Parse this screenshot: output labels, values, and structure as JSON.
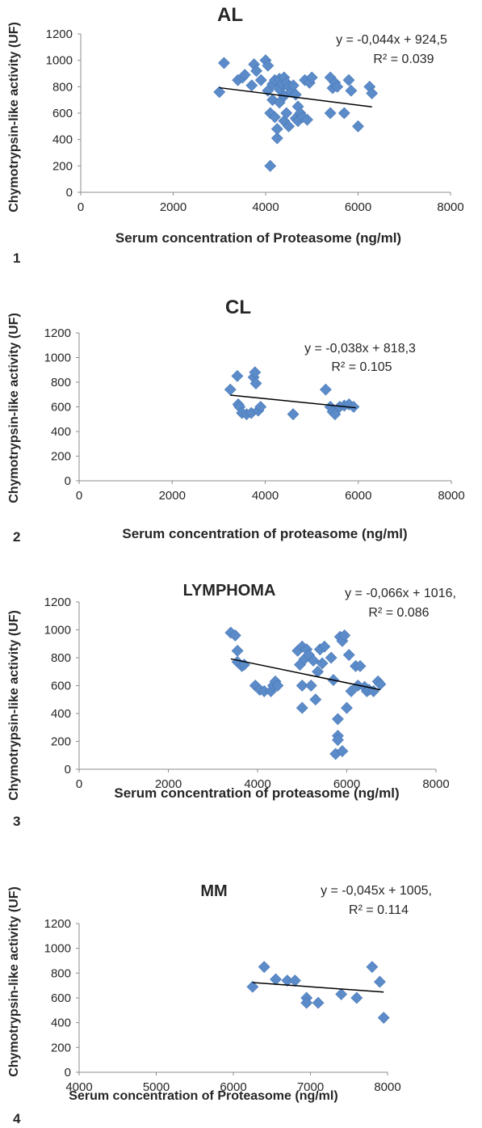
{
  "colors": {
    "marker": "#5b8bc9",
    "trendline": "#000000",
    "axis": "#8c8c8c",
    "text": "#262626"
  },
  "chart_data": [
    {
      "type": "scatter",
      "panel_number": "1",
      "title": "AL",
      "xlabel": "Serum concentration of Proteasome (ng/ml)",
      "ylabel": "Chymotrypsin-like activity (UF)",
      "xlim": [
        0,
        8000
      ],
      "ylim": [
        0,
        1200
      ],
      "xticks": [
        "0",
        "2000",
        "4000",
        "6000",
        "8000"
      ],
      "yticks": [
        "0",
        "200",
        "400",
        "600",
        "800",
        "1000",
        "1200"
      ],
      "equation": "y = -0,044x + 924,5",
      "r2": "R² = 0.039",
      "trendline": {
        "slope": -0.044,
        "intercept": 924.5,
        "x_range": [
          3000,
          6300
        ]
      },
      "points": [
        [
          3000,
          760
        ],
        [
          3100,
          980
        ],
        [
          3400,
          850
        ],
        [
          3500,
          870
        ],
        [
          3550,
          890
        ],
        [
          3700,
          810
        ],
        [
          3750,
          970
        ],
        [
          3800,
          920
        ],
        [
          3900,
          850
        ],
        [
          4000,
          1000
        ],
        [
          4050,
          960
        ],
        [
          4050,
          770
        ],
        [
          4100,
          200
        ],
        [
          4100,
          600
        ],
        [
          4150,
          700
        ],
        [
          4150,
          820
        ],
        [
          4200,
          850
        ],
        [
          4200,
          570
        ],
        [
          4250,
          410
        ],
        [
          4250,
          480
        ],
        [
          4300,
          680
        ],
        [
          4300,
          860
        ],
        [
          4300,
          780
        ],
        [
          4350,
          820
        ],
        [
          4400,
          870
        ],
        [
          4400,
          540
        ],
        [
          4400,
          730
        ],
        [
          4450,
          600
        ],
        [
          4450,
          830
        ],
        [
          4500,
          800
        ],
        [
          4500,
          500
        ],
        [
          4550,
          760
        ],
        [
          4600,
          810
        ],
        [
          4650,
          740
        ],
        [
          4650,
          560
        ],
        [
          4700,
          650
        ],
        [
          4700,
          540
        ],
        [
          4750,
          600
        ],
        [
          4800,
          570
        ],
        [
          4850,
          850
        ],
        [
          4900,
          550
        ],
        [
          4950,
          830
        ],
        [
          5000,
          870
        ],
        [
          5400,
          870
        ],
        [
          5400,
          600
        ],
        [
          5450,
          790
        ],
        [
          5500,
          830
        ],
        [
          5550,
          800
        ],
        [
          5700,
          600
        ],
        [
          5800,
          850
        ],
        [
          5850,
          770
        ],
        [
          6000,
          500
        ],
        [
          6250,
          800
        ],
        [
          6300,
          750
        ]
      ]
    },
    {
      "type": "scatter",
      "panel_number": "2",
      "title": "CL",
      "xlabel": "Serum concentration of proteasome (ng/ml)",
      "ylabel": "Chymotrypsin-like activity (UF)",
      "xlim": [
        0,
        8000
      ],
      "ylim": [
        0,
        1200
      ],
      "xticks": [
        "0",
        "2000",
        "4000",
        "6000",
        "8000"
      ],
      "yticks": [
        "0",
        "200",
        "400",
        "600",
        "800",
        "1000",
        "1200"
      ],
      "equation": "y = -0,038x + 818,3",
      "r2": "R² = 0.105",
      "trendline": {
        "slope": -0.038,
        "intercept": 818.3,
        "x_range": [
          3250,
          5950
        ]
      },
      "points": [
        [
          3250,
          740
        ],
        [
          3400,
          850
        ],
        [
          3420,
          620
        ],
        [
          3450,
          600
        ],
        [
          3500,
          550
        ],
        [
          3600,
          540
        ],
        [
          3700,
          550
        ],
        [
          3750,
          840
        ],
        [
          3780,
          880
        ],
        [
          3800,
          790
        ],
        [
          3850,
          570
        ],
        [
          3900,
          600
        ],
        [
          4600,
          540
        ],
        [
          5300,
          740
        ],
        [
          5400,
          600
        ],
        [
          5450,
          560
        ],
        [
          5500,
          540
        ],
        [
          5600,
          600
        ],
        [
          5700,
          610
        ],
        [
          5800,
          620
        ],
        [
          5900,
          600
        ]
      ]
    },
    {
      "type": "scatter",
      "panel_number": "3",
      "title": "LYMPHOMA",
      "xlabel": "Serum concentration of proteasome (ng/ml)",
      "ylabel": "Chymotrypsin-like activity (UF)",
      "xlim": [
        0,
        8000
      ],
      "ylim": [
        0,
        1200
      ],
      "xticks": [
        "0",
        "2000",
        "4000",
        "6000",
        "8000"
      ],
      "yticks": [
        "0",
        "200",
        "400",
        "600",
        "800",
        "1000",
        "1200"
      ],
      "equation": "y = -0,066x + 1016,",
      "r2": "R² = 0.086",
      "trendline": {
        "slope": -0.066,
        "intercept": 1016,
        "x_range": [
          3400,
          6750
        ]
      },
      "points": [
        [
          3400,
          980
        ],
        [
          3500,
          960
        ],
        [
          3550,
          850
        ],
        [
          3550,
          770
        ],
        [
          3650,
          740
        ],
        [
          3700,
          750
        ],
        [
          3950,
          600
        ],
        [
          4050,
          570
        ],
        [
          4150,
          560
        ],
        [
          4300,
          560
        ],
        [
          4350,
          600
        ],
        [
          4400,
          630
        ],
        [
          4450,
          600
        ],
        [
          4900,
          850
        ],
        [
          4950,
          750
        ],
        [
          5000,
          880
        ],
        [
          5000,
          600
        ],
        [
          5000,
          440
        ],
        [
          5050,
          790
        ],
        [
          5100,
          860
        ],
        [
          5150,
          820
        ],
        [
          5200,
          600
        ],
        [
          5250,
          780
        ],
        [
          5300,
          500
        ],
        [
          5350,
          700
        ],
        [
          5400,
          860
        ],
        [
          5450,
          760
        ],
        [
          5500,
          880
        ],
        [
          5650,
          800
        ],
        [
          5700,
          640
        ],
        [
          5750,
          110
        ],
        [
          5800,
          360
        ],
        [
          5800,
          240
        ],
        [
          5800,
          210
        ],
        [
          5850,
          950
        ],
        [
          5900,
          920
        ],
        [
          5950,
          960
        ],
        [
          5900,
          130
        ],
        [
          6000,
          440
        ],
        [
          6050,
          820
        ],
        [
          6100,
          560
        ],
        [
          6200,
          740
        ],
        [
          6250,
          600
        ],
        [
          6300,
          740
        ],
        [
          6400,
          590
        ],
        [
          6450,
          560
        ],
        [
          6500,
          570
        ],
        [
          6600,
          560
        ],
        [
          6700,
          630
        ],
        [
          6750,
          610
        ]
      ]
    },
    {
      "type": "scatter",
      "panel_number": "4",
      "title": "MM",
      "xlabel": "Serum concentration of Proteasome (ng/ml)",
      "ylabel": "Chymotrypsin-like activity (UF)",
      "xlim": [
        4000,
        8000
      ],
      "ylim": [
        0,
        1200
      ],
      "xticks": [
        "4000",
        "5000",
        "6000",
        "7000",
        "8000"
      ],
      "yticks": [
        "0",
        "200",
        "400",
        "600",
        "800",
        "1000",
        "1200"
      ],
      "equation": "y = -0,045x + 1005,",
      "r2": "R² = 0.114",
      "trendline": {
        "slope": -0.045,
        "intercept": 1005,
        "x_range": [
          6250,
          7950
        ]
      },
      "points": [
        [
          6250,
          690
        ],
        [
          6400,
          850
        ],
        [
          6550,
          750
        ],
        [
          6700,
          740
        ],
        [
          6800,
          740
        ],
        [
          6950,
          600
        ],
        [
          6950,
          560
        ],
        [
          7100,
          560
        ],
        [
          7400,
          630
        ],
        [
          7600,
          600
        ],
        [
          7800,
          850
        ],
        [
          7900,
          730
        ],
        [
          7950,
          440
        ]
      ]
    }
  ]
}
